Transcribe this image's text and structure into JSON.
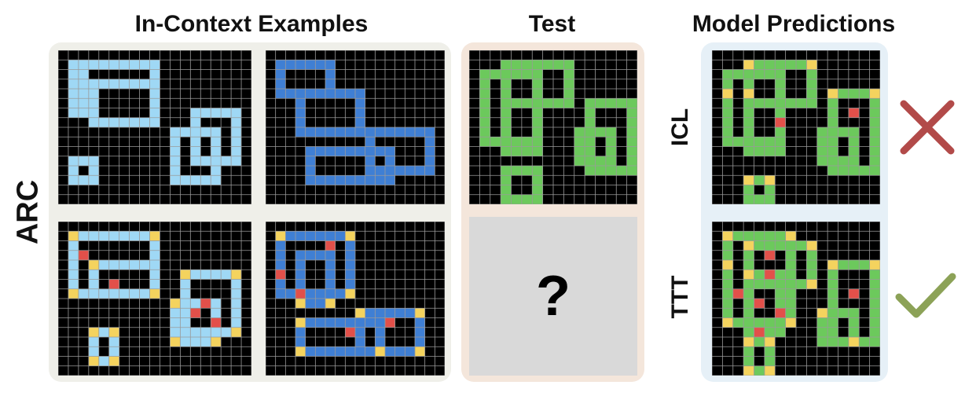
{
  "headings": {
    "in_context": "In-Context Examples",
    "test": "Test",
    "predictions": "Model Predictions"
  },
  "row_label": "ARC",
  "prediction_labels": {
    "icl": "ICL",
    "ttt": "TTT"
  },
  "test_output_placeholder": "?",
  "icons": {
    "icl_result": "cross-icon",
    "ttt_result": "check-icon"
  },
  "colors": {
    "background": "#000000",
    "grid_line": "#9a9a9a",
    "light_blue": "#9fd8f5",
    "blue": "#3f7fd4",
    "green": "#6cc95c",
    "yellow": "#f4d35e",
    "red": "#e2504a",
    "examples_panel": "#efefe9",
    "test_panel": "#f4e6db",
    "predictions_panel": "#e6f0f7",
    "cross": "#b24a49",
    "check": "#8ca257"
  }
}
